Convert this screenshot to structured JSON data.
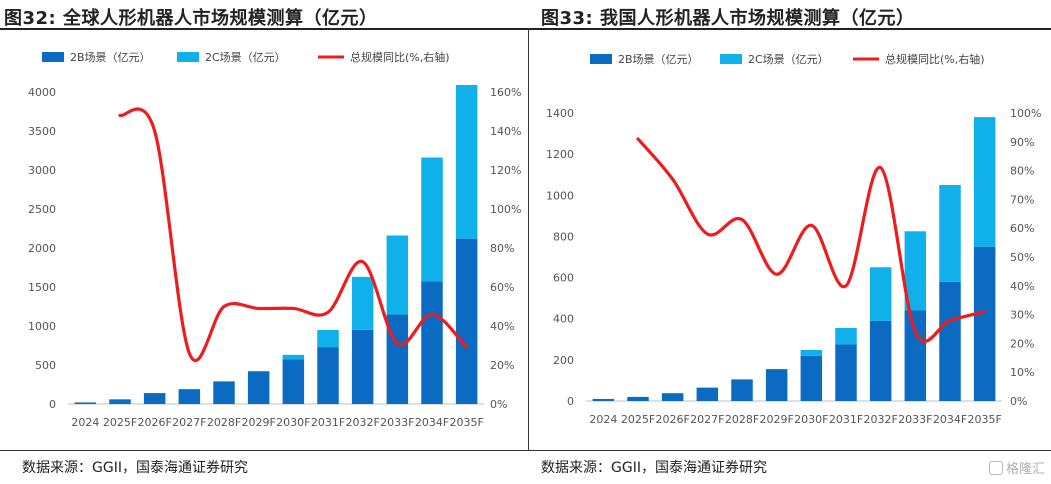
{
  "footer": {
    "watermark": "格隆汇"
  },
  "chart_data": [
    {
      "type": "bar",
      "figure_label": "图32:",
      "title": "全球人形机器人市场规模测算（亿元）",
      "source": "数据来源：GGII，国泰海通证券研究",
      "stacked": true,
      "categories": [
        "2024",
        "2025F",
        "2026F",
        "2027F",
        "2028F",
        "2029F",
        "2030F",
        "2031F",
        "2032F",
        "2033F",
        "2034F",
        "2035F"
      ],
      "series": [
        {
          "name": "2B场景（亿元）",
          "type": "bar",
          "axis": "left",
          "color": "#0b6bc2",
          "values": [
            20,
            60,
            140,
            190,
            290,
            420,
            570,
            730,
            950,
            1150,
            1570,
            2120
          ]
        },
        {
          "name": "2C场景（亿元）",
          "type": "bar",
          "axis": "left",
          "color": "#10b0ea",
          "values": [
            0,
            0,
            0,
            0,
            0,
            0,
            60,
            220,
            680,
            1010,
            1590,
            1970
          ]
        },
        {
          "name": "总规模同比(%,右轴)",
          "type": "line",
          "axis": "right",
          "color": "#ee1c1c",
          "values": [
            null,
            148,
            140,
            26,
            50,
            49,
            49,
            47,
            73,
            31,
            46,
            29
          ]
        }
      ],
      "ylim": [
        0,
        4000
      ],
      "yticks": [
        0,
        500,
        1000,
        1500,
        2000,
        2500,
        3000,
        3500,
        4000
      ],
      "y2lim": [
        0,
        160
      ],
      "y2ticks": [
        0,
        20,
        40,
        60,
        80,
        100,
        120,
        140,
        160
      ],
      "y2_unit": "%",
      "legend": "top",
      "grid": false
    },
    {
      "type": "bar",
      "figure_label": "图33:",
      "title": "我国人形机器人市场规模测算（亿元）",
      "source": "数据来源：GGII，国泰海通证券研究",
      "stacked": true,
      "categories": [
        "2024",
        "2025F",
        "2026F",
        "2027F",
        "2028F",
        "2029F",
        "2030F",
        "2031F",
        "2032F",
        "2033F",
        "2034F",
        "2035F"
      ],
      "series": [
        {
          "name": "2B场景（亿元）",
          "type": "bar",
          "axis": "left",
          "color": "#0b6bc2",
          "values": [
            10,
            20,
            38,
            65,
            105,
            155,
            220,
            275,
            390,
            440,
            580,
            750
          ]
        },
        {
          "name": "2C场景（亿元）",
          "type": "bar",
          "axis": "left",
          "color": "#10b0ea",
          "values": [
            0,
            0,
            0,
            0,
            0,
            0,
            28,
            80,
            260,
            385,
            470,
            630
          ]
        },
        {
          "name": "总规模同比(%,右轴)",
          "type": "line",
          "axis": "right",
          "color": "#ee1c1c",
          "values": [
            null,
            91,
            77,
            58,
            63,
            44,
            61,
            40,
            81,
            24,
            28,
            31
          ]
        }
      ],
      "ylim": [
        0,
        1400
      ],
      "yticks": [
        0,
        200,
        400,
        600,
        800,
        1000,
        1200,
        1400
      ],
      "y2lim": [
        0,
        100
      ],
      "y2ticks": [
        0,
        10,
        20,
        30,
        40,
        50,
        60,
        70,
        80,
        90,
        100
      ],
      "y2_unit": "%",
      "legend": "top",
      "grid": false
    }
  ]
}
